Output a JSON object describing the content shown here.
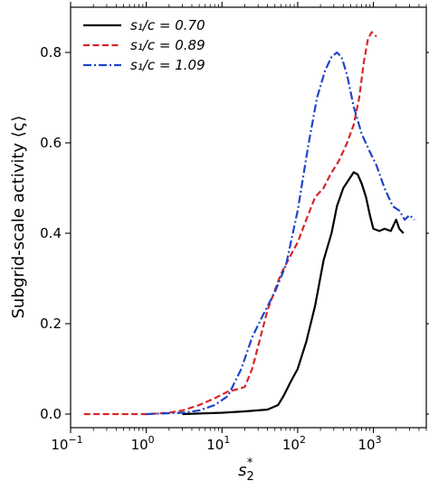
{
  "chart_data": {
    "type": "line",
    "xscale": "log",
    "xlim": [
      0.1,
      5000
    ],
    "ylim": [
      -0.03,
      0.9
    ],
    "xlabel_base": "s",
    "xlabel_sub": "2",
    "xlabel_sup": "*",
    "ylabel": "Subgrid-scale activity ⟨ς⟩",
    "grid": false,
    "legend_position": "top-left",
    "x_ticks": [
      {
        "value": 0.1,
        "base": "10",
        "exp": "−1"
      },
      {
        "value": 1,
        "base": "10",
        "exp": "0"
      },
      {
        "value": 10,
        "base": "10",
        "exp": "1"
      },
      {
        "value": 100,
        "base": "10",
        "exp": "2"
      },
      {
        "value": 1000,
        "base": "10",
        "exp": "3"
      }
    ],
    "y_ticks": [
      {
        "value": 0.0,
        "label": "0.0"
      },
      {
        "value": 0.2,
        "label": "0.2"
      },
      {
        "value": 0.4,
        "label": "0.4"
      },
      {
        "value": 0.6,
        "label": "0.6"
      },
      {
        "value": 0.8,
        "label": "0.8"
      }
    ],
    "series": [
      {
        "name": "s₁/c = 0.70",
        "color": "#000000",
        "dash": "solid",
        "points": [
          [
            3,
            0
          ],
          [
            10,
            0.003
          ],
          [
            20,
            0.006
          ],
          [
            40,
            0.01
          ],
          [
            55,
            0.02
          ],
          [
            65,
            0.04
          ],
          [
            80,
            0.07
          ],
          [
            100,
            0.1
          ],
          [
            130,
            0.16
          ],
          [
            170,
            0.24
          ],
          [
            220,
            0.34
          ],
          [
            280,
            0.4
          ],
          [
            330,
            0.46
          ],
          [
            400,
            0.5
          ],
          [
            480,
            0.52
          ],
          [
            550,
            0.535
          ],
          [
            620,
            0.53
          ],
          [
            700,
            0.51
          ],
          [
            800,
            0.48
          ],
          [
            900,
            0.44
          ],
          [
            1000,
            0.41
          ],
          [
            1200,
            0.405
          ],
          [
            1400,
            0.41
          ],
          [
            1700,
            0.405
          ],
          [
            2000,
            0.43
          ],
          [
            2200,
            0.41
          ],
          [
            2500,
            0.4
          ]
        ]
      },
      {
        "name": "s₁/c = 0.89",
        "color": "#d62728",
        "dash": "dashed",
        "points": [
          [
            0.15,
            0
          ],
          [
            1,
            0
          ],
          [
            2,
            0.003
          ],
          [
            3,
            0.008
          ],
          [
            5,
            0.02
          ],
          [
            8,
            0.035
          ],
          [
            12,
            0.05
          ],
          [
            16,
            0.055
          ],
          [
            20,
            0.06
          ],
          [
            25,
            0.1
          ],
          [
            30,
            0.15
          ],
          [
            40,
            0.23
          ],
          [
            60,
            0.31
          ],
          [
            80,
            0.35
          ],
          [
            100,
            0.38
          ],
          [
            130,
            0.43
          ],
          [
            170,
            0.48
          ],
          [
            220,
            0.5
          ],
          [
            270,
            0.53
          ],
          [
            350,
            0.56
          ],
          [
            450,
            0.6
          ],
          [
            550,
            0.64
          ],
          [
            650,
            0.7
          ],
          [
            750,
            0.78
          ],
          [
            850,
            0.83
          ],
          [
            950,
            0.845
          ],
          [
            1100,
            0.835
          ]
        ]
      },
      {
        "name": "s₁/c = 1.09",
        "color": "#1f45c8",
        "dash": "dashdot",
        "points": [
          [
            1,
            0
          ],
          [
            3,
            0.003
          ],
          [
            5,
            0.008
          ],
          [
            8,
            0.02
          ],
          [
            12,
            0.04
          ],
          [
            18,
            0.1
          ],
          [
            25,
            0.17
          ],
          [
            35,
            0.22
          ],
          [
            50,
            0.27
          ],
          [
            70,
            0.33
          ],
          [
            100,
            0.45
          ],
          [
            140,
            0.6
          ],
          [
            180,
            0.7
          ],
          [
            230,
            0.76
          ],
          [
            280,
            0.79
          ],
          [
            330,
            0.8
          ],
          [
            380,
            0.79
          ],
          [
            450,
            0.75
          ],
          [
            550,
            0.68
          ],
          [
            700,
            0.62
          ],
          [
            900,
            0.58
          ],
          [
            1100,
            0.55
          ],
          [
            1400,
            0.5
          ],
          [
            1800,
            0.46
          ],
          [
            2200,
            0.45
          ],
          [
            2600,
            0.43
          ],
          [
            3000,
            0.44
          ],
          [
            3500,
            0.43
          ]
        ]
      }
    ]
  }
}
